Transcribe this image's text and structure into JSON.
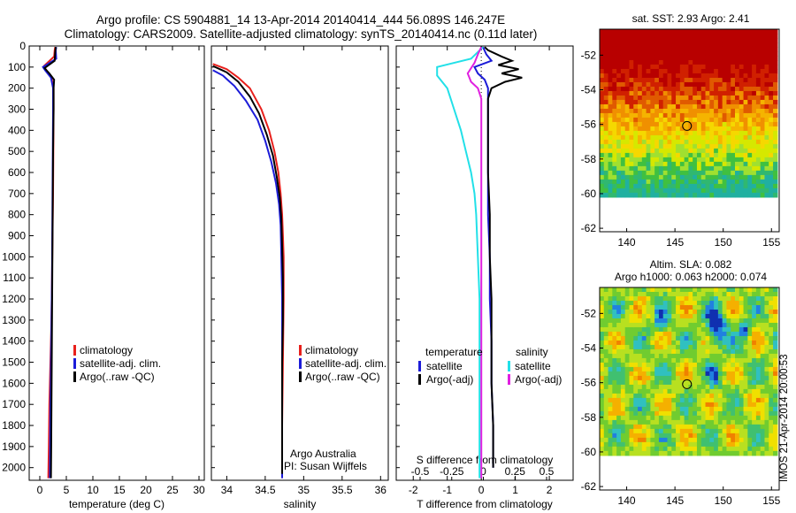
{
  "title": {
    "line1": "Argo profile: CS 5904881_14 13-Apr-2014 20140414_444 56.089S 146.247E",
    "line2": "Climatology: CARS2009. Satellite-adjusted climatology: synTS_20140414.nc (0.11d later)"
  },
  "footer": {
    "credit_line1": "Argo Australia",
    "credit_line2": "PI: Susan Wijffels",
    "timestamp": "IMOS 21-Apr-2014 20:00:53"
  },
  "colors": {
    "climatology": "#e8201c",
    "satellite": "#1c1cd8",
    "argo": "#000000",
    "sal_satellite": "#22e0e8",
    "sal_argo": "#e020e0"
  },
  "chart_data": [
    {
      "id": "temperature",
      "type": "line",
      "xlabel": "temperature (deg C)",
      "ylabel": "",
      "xlim": [
        -2,
        31
      ],
      "ylim": [
        2060,
        0
      ],
      "xticks": [
        0,
        5,
        10,
        15,
        20,
        25,
        30
      ],
      "yticks": [
        0,
        100,
        200,
        300,
        400,
        500,
        600,
        700,
        800,
        900,
        1000,
        1100,
        1200,
        1300,
        1400,
        1500,
        1600,
        1700,
        1800,
        1900,
        2000
      ],
      "legend": {
        "placement": "lower-center",
        "entries": [
          "climatology",
          "satellite-adj. clim.",
          "Argo(..raw -QC)"
        ]
      },
      "series": [
        {
          "name": "climatology",
          "color_key": "climatology",
          "points": [
            [
              2.9,
              5
            ],
            [
              2.8,
              20
            ],
            [
              2.7,
              50
            ],
            [
              0.8,
              95
            ],
            [
              1.1,
              110
            ],
            [
              2.2,
              150
            ],
            [
              2.6,
              200
            ],
            [
              2.6,
              300
            ],
            [
              2.55,
              500
            ],
            [
              2.5,
              700
            ],
            [
              2.4,
              900
            ],
            [
              2.3,
              1100
            ],
            [
              2.2,
              1300
            ],
            [
              2.0,
              1500
            ],
            [
              1.8,
              1700
            ],
            [
              1.7,
              1900
            ],
            [
              1.6,
              2050
            ]
          ]
        },
        {
          "name": "satellite-adj. clim.",
          "color_key": "satellite",
          "points": [
            [
              3.1,
              5
            ],
            [
              3.0,
              20
            ],
            [
              3.1,
              60
            ],
            [
              0.6,
              100
            ],
            [
              1.0,
              115
            ],
            [
              2.1,
              150
            ],
            [
              2.5,
              200
            ],
            [
              2.5,
              300
            ],
            [
              2.45,
              500
            ],
            [
              2.4,
              700
            ],
            [
              2.35,
              900
            ],
            [
              2.3,
              1100
            ],
            [
              2.2,
              1300
            ],
            [
              2.1,
              1500
            ],
            [
              2.0,
              1700
            ],
            [
              1.95,
              1900
            ],
            [
              1.9,
              2050
            ]
          ]
        },
        {
          "name": "Argo(..raw -QC)",
          "color_key": "argo",
          "points": [
            [
              3.0,
              5
            ],
            [
              2.9,
              30
            ],
            [
              2.8,
              70
            ],
            [
              0.9,
              105
            ],
            [
              1.8,
              130
            ],
            [
              2.7,
              160
            ],
            [
              2.6,
              200
            ],
            [
              2.6,
              300
            ],
            [
              2.5,
              500
            ],
            [
              2.45,
              700
            ],
            [
              2.4,
              900
            ],
            [
              2.35,
              1100
            ],
            [
              2.3,
              1300
            ],
            [
              2.25,
              1500
            ],
            [
              2.2,
              1700
            ],
            [
              2.15,
              1900
            ],
            [
              2.1,
              2050
            ]
          ]
        }
      ]
    },
    {
      "id": "salinity",
      "type": "line",
      "xlabel": "salinity",
      "ylabel": "",
      "xlim": [
        33.8,
        36.1
      ],
      "ylim": [
        2060,
        0
      ],
      "xticks": [
        34,
        34.5,
        35,
        35.5,
        36
      ],
      "legend": {
        "placement": "lower-center",
        "entries": [
          "climatology",
          "satellite-adj. clim.",
          "Argo(..raw -QC)"
        ]
      },
      "series": [
        {
          "name": "climatology",
          "color_key": "climatology",
          "points": [
            [
              33.82,
              85
            ],
            [
              34.0,
              110
            ],
            [
              34.15,
              150
            ],
            [
              34.3,
              200
            ],
            [
              34.45,
              300
            ],
            [
              34.55,
              400
            ],
            [
              34.62,
              500
            ],
            [
              34.67,
              600
            ],
            [
              34.7,
              700
            ],
            [
              34.72,
              800
            ],
            [
              34.73,
              900
            ],
            [
              34.74,
              1000
            ],
            [
              34.74,
              1200
            ],
            [
              34.73,
              1500
            ],
            [
              34.72,
              1800
            ],
            [
              34.72,
              2050
            ]
          ]
        },
        {
          "name": "satellite-adj. clim.",
          "color_key": "satellite",
          "points": [
            [
              33.82,
              115
            ],
            [
              33.95,
              140
            ],
            [
              34.1,
              190
            ],
            [
              34.25,
              260
            ],
            [
              34.4,
              350
            ],
            [
              34.5,
              450
            ],
            [
              34.58,
              550
            ],
            [
              34.64,
              650
            ],
            [
              34.68,
              750
            ],
            [
              34.7,
              850
            ],
            [
              34.71,
              1000
            ],
            [
              34.72,
              1200
            ],
            [
              34.72,
              1500
            ],
            [
              34.72,
              1800
            ],
            [
              34.72,
              2050
            ]
          ]
        },
        {
          "name": "Argo(..raw -QC)",
          "color_key": "argo",
          "points": [
            [
              33.82,
              95
            ],
            [
              34.0,
              125
            ],
            [
              34.15,
              170
            ],
            [
              34.3,
              240
            ],
            [
              34.42,
              320
            ],
            [
              34.52,
              420
            ],
            [
              34.6,
              520
            ],
            [
              34.65,
              620
            ],
            [
              34.69,
              720
            ],
            [
              34.71,
              820
            ],
            [
              34.72,
              950
            ],
            [
              34.73,
              1100
            ],
            [
              34.73,
              1300
            ],
            [
              34.72,
              1500
            ],
            [
              34.72,
              1800
            ],
            [
              34.72,
              2030
            ]
          ]
        }
      ]
    },
    {
      "id": "difference",
      "type": "line",
      "xlabel": "T difference from climatology",
      "x2label": "S difference from climatology",
      "xlim": [
        -2.5,
        2.7
      ],
      "ylim": [
        2060,
        0
      ],
      "xticks": [
        -2,
        -1,
        0,
        1,
        2
      ],
      "x2ticks": [
        -0.5,
        -0.25,
        0,
        0.25,
        0.5
      ],
      "legend": {
        "placement": "lower-center",
        "col1_header": "temperature",
        "col2_header": "salinity",
        "col1_entries": [
          "satellite",
          "Argo(-adj)"
        ],
        "col2_entries": [
          "satellite",
          "Argo(-adj)"
        ]
      },
      "series": [
        {
          "name": "temperature satellite",
          "color_key": "satellite",
          "points": [
            [
              0.05,
              5
            ],
            [
              0.15,
              40
            ],
            [
              0.3,
              70
            ],
            [
              -0.2,
              100
            ],
            [
              -0.1,
              130
            ],
            [
              0.1,
              160
            ],
            [
              0.2,
              200
            ],
            [
              0.2,
              400
            ],
            [
              0.2,
              600
            ],
            [
              0.2,
              800
            ],
            [
              0.25,
              1000
            ],
            [
              0.25,
              1200
            ],
            [
              0.3,
              1400
            ],
            [
              0.3,
              1600
            ],
            [
              0.35,
              1800
            ],
            [
              0.35,
              2000
            ]
          ]
        },
        {
          "name": "temperature Argo(-adj)",
          "color_key": "argo",
          "points": [
            [
              0.1,
              5
            ],
            [
              0.2,
              20
            ],
            [
              0.6,
              50
            ],
            [
              0.9,
              70
            ],
            [
              0.5,
              90
            ],
            [
              1.1,
              110
            ],
            [
              0.6,
              130
            ],
            [
              1.2,
              150
            ],
            [
              0.7,
              170
            ],
            [
              0.3,
              200
            ],
            [
              0.2,
              250
            ],
            [
              0.2,
              400
            ],
            [
              0.2,
              600
            ],
            [
              0.25,
              800
            ],
            [
              0.25,
              1000
            ],
            [
              0.3,
              1200
            ],
            [
              0.3,
              1400
            ],
            [
              0.3,
              1600
            ],
            [
              0.35,
              1800
            ],
            [
              0.35,
              2000
            ]
          ]
        },
        {
          "name": "salinity satellite",
          "color_key": "sal_satellite",
          "points": [
            [
              0.05,
              5
            ],
            [
              -0.3,
              60
            ],
            [
              -1.3,
              100
            ],
            [
              -1.3,
              140
            ],
            [
              -1.0,
              200
            ],
            [
              -0.8,
              300
            ],
            [
              -0.6,
              400
            ],
            [
              -0.45,
              500
            ],
            [
              -0.3,
              600
            ],
            [
              -0.2,
              700
            ],
            [
              -0.15,
              800
            ],
            [
              -0.1,
              1000
            ],
            [
              -0.05,
              1200
            ],
            [
              -0.05,
              1500
            ],
            [
              -0.05,
              1800
            ],
            [
              -0.05,
              2050
            ]
          ]
        },
        {
          "name": "salinity Argo(-adj)",
          "color_key": "sal_argo",
          "points": [
            [
              0.0,
              5
            ],
            [
              -0.1,
              40
            ],
            [
              -0.2,
              80
            ],
            [
              -0.4,
              130
            ],
            [
              -0.3,
              170
            ],
            [
              -0.1,
              200
            ],
            [
              0.0,
              250
            ],
            [
              0.0,
              400
            ],
            [
              0.0,
              1000
            ],
            [
              0.0,
              2050
            ]
          ]
        }
      ]
    },
    {
      "id": "sst_map",
      "type": "heatmap",
      "title": "sat. SST: 2.93 Argo: 2.41",
      "xlim": [
        137.2,
        155.8
      ],
      "ylim": [
        -62.2,
        -50.5
      ],
      "xticks": [
        140,
        145,
        150,
        155
      ],
      "yticks": [
        -52,
        -54,
        -56,
        -58,
        -60,
        -62
      ],
      "data_ylim": [
        -60.2,
        -50.5
      ],
      "marker": {
        "lon": 146.247,
        "lat": -56.089
      }
    },
    {
      "id": "sla_map",
      "type": "heatmap",
      "title_line1": "Altim. SLA: 0.082",
      "title_line2": "Argo h1000: 0.063 h2000: 0.074",
      "xlim": [
        137.2,
        155.8
      ],
      "ylim": [
        -62.2,
        -50.5
      ],
      "xticks": [
        140,
        145,
        150,
        155
      ],
      "yticks": [
        -52,
        -54,
        -56,
        -58,
        -60,
        -62
      ],
      "data_ylim": [
        -60.2,
        -50.5
      ],
      "marker": {
        "lon": 146.247,
        "lat": -56.089
      }
    }
  ]
}
